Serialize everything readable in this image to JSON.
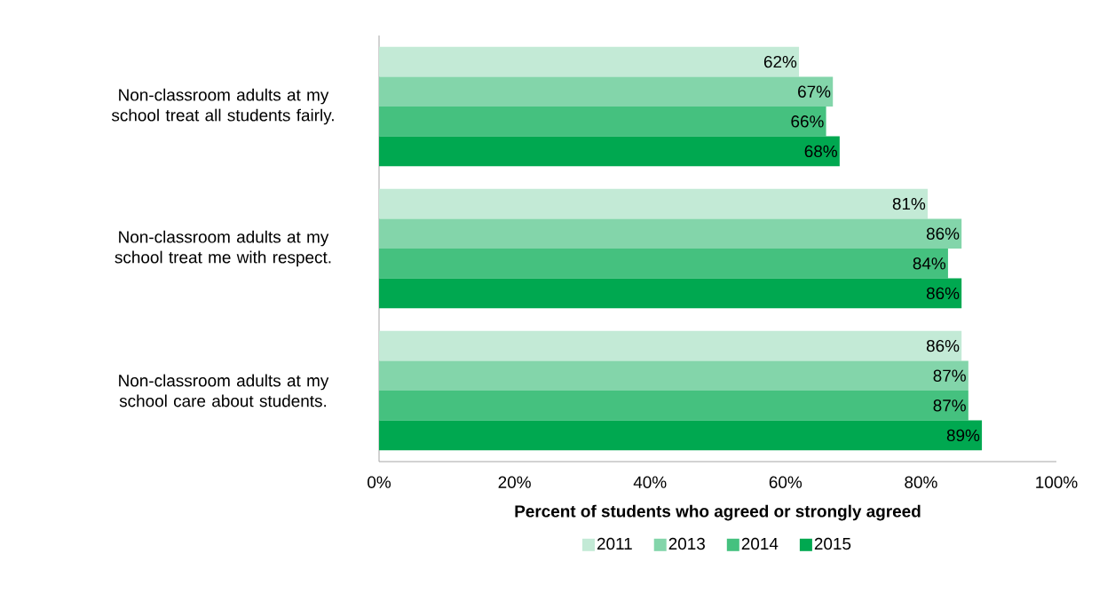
{
  "chart_data": {
    "type": "bar",
    "orientation": "horizontal",
    "categories": [
      "Non-classroom adults at my school treat all students fairly.",
      "Non-classroom adults at my school treat me with respect.",
      "Non-classroom adults at my school care about students."
    ],
    "series": [
      {
        "name": "2011",
        "color": "#c3ead6",
        "values": [
          62,
          81,
          86
        ],
        "value_labels": [
          "62%",
          "81%",
          "86%"
        ]
      },
      {
        "name": "2013",
        "color": "#83d5aa",
        "values": [
          67,
          86,
          87
        ],
        "value_labels": [
          "67%",
          "86%",
          "87%"
        ]
      },
      {
        "name": "2014",
        "color": "#45c17f",
        "values": [
          66,
          84,
          87
        ],
        "value_labels": [
          "66%",
          "84%",
          "87%"
        ]
      },
      {
        "name": "2015",
        "color": "#00a850",
        "values": [
          68,
          86,
          89
        ],
        "value_labels": [
          "68%",
          "86%",
          "89%"
        ]
      }
    ],
    "xlim": [
      0,
      100
    ],
    "xticks": [
      {
        "value": 0,
        "label": "0%"
      },
      {
        "value": 20,
        "label": "20%"
      },
      {
        "value": 40,
        "label": "40%"
      },
      {
        "value": 60,
        "label": "60%"
      },
      {
        "value": 80,
        "label": "80%"
      },
      {
        "value": 100,
        "label": "100%"
      }
    ],
    "xlabel": "Percent of students who agreed or strongly agreed",
    "legend": "bottom"
  }
}
